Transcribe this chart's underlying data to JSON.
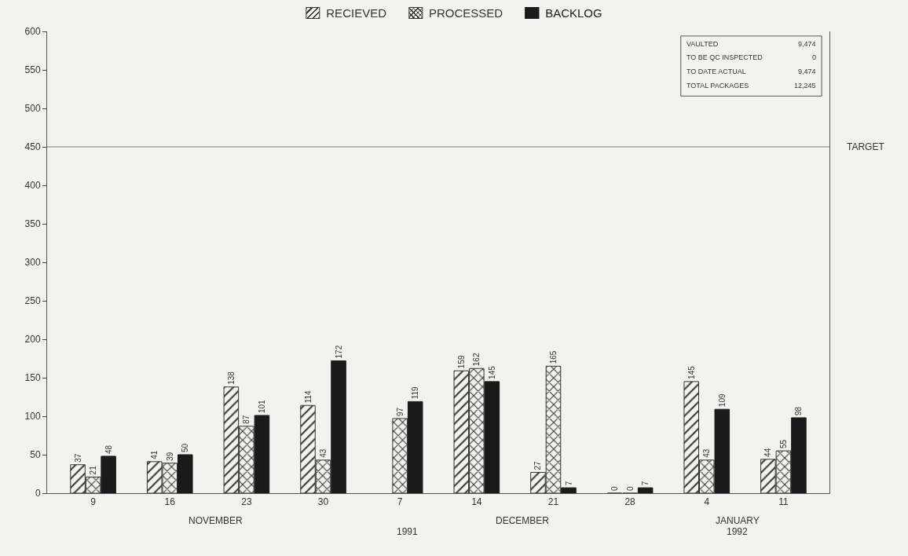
{
  "chart_data": {
    "type": "bar",
    "categories": [
      "9",
      "16",
      "23",
      "30",
      "7",
      "14",
      "21",
      "28",
      "4",
      "11"
    ],
    "series": [
      {
        "name": "RECIEVED",
        "color": "#333333",
        "values": [
          37,
          41,
          138,
          114,
          null,
          159,
          27,
          0,
          145,
          44
        ]
      },
      {
        "name": "PROCESSED",
        "color": "#333333",
        "values": [
          21,
          39,
          87,
          43,
          97,
          162,
          165,
          0,
          43,
          55
        ]
      },
      {
        "name": "BACKLOG",
        "color": "#1a1a1a",
        "values": [
          48,
          50,
          101,
          172,
          119,
          145,
          7,
          7,
          109,
          98
        ]
      }
    ],
    "ylim": [
      0,
      600
    ],
    "yticks": [
      0,
      50,
      100,
      150,
      200,
      250,
      300,
      350,
      400,
      450,
      500,
      550,
      600
    ],
    "ref_lines": [
      {
        "axis": "y",
        "value": 450,
        "label": "TARGET"
      }
    ],
    "data_labels": true,
    "legend": "top",
    "grid": false,
    "annotations": [
      "NOVEMBER",
      "DECEMBER",
      "JANUARY",
      "1991",
      "1992",
      "VAULTED",
      "9,474",
      "TO BE QC INSPECTED",
      "0",
      "TO DATE ACTUAL",
      "9,474",
      "TOTAL PACKAGES",
      "12,245"
    ]
  }
}
